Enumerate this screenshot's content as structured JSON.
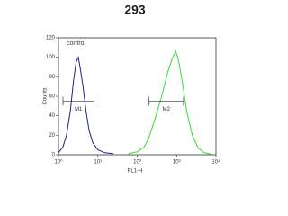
{
  "chart_data": {
    "type": "line",
    "title": "293",
    "xlabel": "FL1-H",
    "ylabel": "Counts",
    "xscale": "log",
    "xlim": [
      1,
      10000
    ],
    "xticks": [
      {
        "value": 1,
        "label": "10⁰"
      },
      {
        "value": 10,
        "label": "10¹"
      },
      {
        "value": 100,
        "label": "10²"
      },
      {
        "value": 1000,
        "label": "10³"
      },
      {
        "value": 10000,
        "label": "10⁴"
      }
    ],
    "ylim": [
      0,
      120
    ],
    "yticks": [
      0,
      20,
      40,
      60,
      80,
      100,
      120
    ],
    "series": [
      {
        "name": "control",
        "color": "#1a237e",
        "x": [
          1,
          1.3,
          1.6,
          2,
          2.4,
          2.8,
          3.2,
          3.6,
          4.2,
          5,
          6,
          7.5,
          10,
          15,
          25
        ],
        "values": [
          2,
          8,
          20,
          45,
          75,
          95,
          100,
          88,
          70,
          45,
          25,
          12,
          5,
          2,
          1
        ]
      },
      {
        "color": "#33dd33",
        "x": [
          60,
          100,
          150,
          200,
          300,
          450,
          600,
          800,
          950,
          1100,
          1400,
          1800,
          2500,
          3500,
          5000,
          8000
        ],
        "values": [
          1,
          3,
          8,
          18,
          40,
          65,
          85,
          100,
          106,
          98,
          75,
          45,
          20,
          7,
          2,
          0.5
        ]
      }
    ],
    "markers": [
      {
        "label": "M1",
        "x": [
          1.3,
          8
        ],
        "y": 55
      },
      {
        "label": "M2",
        "x": [
          200,
          1500
        ],
        "y": 55
      }
    ]
  }
}
